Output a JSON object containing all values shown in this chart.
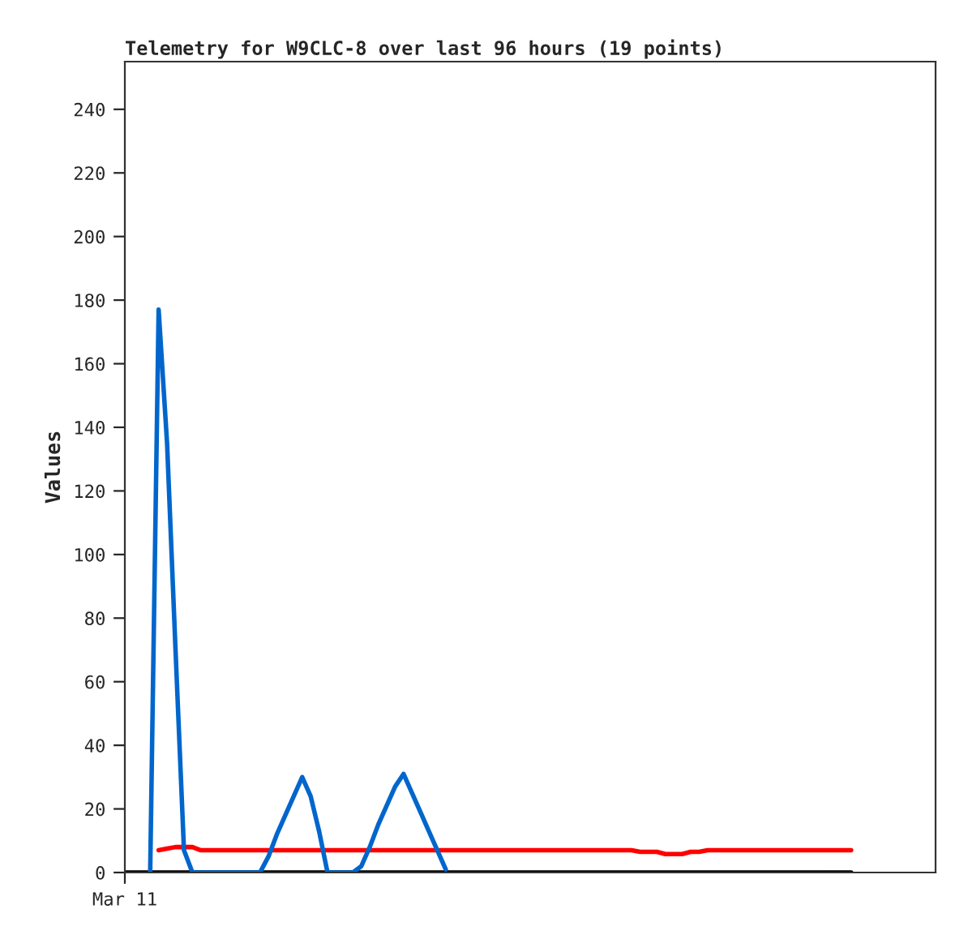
{
  "chart_data": {
    "type": "line",
    "title": "Telemetry for W9CLC-8 over last 96 hours (19 points)",
    "ylabel": "Values",
    "categories": [
      "Mar 11",
      null,
      null,
      null,
      null,
      null,
      null,
      null,
      null,
      null,
      null,
      null,
      null,
      null,
      null,
      null,
      null,
      null,
      null,
      null,
      null,
      null,
      null,
      null,
      null,
      null,
      null,
      null,
      null,
      null,
      null,
      null,
      null,
      null,
      null,
      null,
      null,
      null,
      null,
      null,
      null,
      null,
      null,
      null,
      null,
      null,
      null,
      null,
      null,
      null,
      null,
      null,
      null,
      null,
      null,
      null,
      null,
      null,
      null,
      null,
      null,
      null,
      null,
      null,
      null,
      null,
      null,
      null,
      null,
      null,
      null,
      null,
      null,
      null,
      null,
      null,
      null,
      null,
      null,
      null,
      null,
      null,
      null,
      null,
      null,
      null,
      null,
      null,
      null,
      null,
      null,
      null,
      null,
      null,
      null,
      null,
      null
    ],
    "ylim": [
      0,
      255
    ],
    "yticks": [
      0,
      20,
      40,
      60,
      80,
      100,
      120,
      140,
      160,
      180,
      200,
      220,
      240
    ],
    "grid": false,
    "marker": "none",
    "line_style": "solid",
    "series": [
      {
        "color": "#000000",
        "values": [
          0,
          0,
          0,
          0,
          0,
          0,
          0,
          0,
          0,
          0,
          0,
          0,
          0,
          0,
          0,
          0,
          0,
          0,
          0,
          0,
          0,
          0,
          0,
          0,
          0,
          0,
          0,
          0,
          0,
          0,
          0,
          0,
          0,
          0,
          0,
          0,
          0,
          0,
          0,
          0,
          0,
          0,
          0,
          0,
          0,
          0,
          0,
          0,
          0,
          0,
          0,
          0,
          0,
          0,
          0,
          0,
          0,
          0,
          0,
          0,
          0,
          0,
          0,
          0,
          0,
          0,
          0,
          0,
          0,
          0,
          0,
          0,
          0,
          0,
          0,
          0,
          0,
          0,
          0,
          0,
          0,
          0,
          0,
          0,
          0,
          0,
          0,
          null,
          null,
          null,
          null,
          null,
          null,
          null,
          null,
          null,
          null
        ]
      },
      {
        "color": "#ff0000",
        "values": [
          null,
          null,
          null,
          null,
          7,
          7.5,
          8,
          8,
          8,
          7,
          7,
          7,
          7,
          7,
          7,
          7,
          7,
          7,
          7,
          7,
          7,
          7,
          7,
          7,
          7,
          7,
          7,
          7,
          7,
          7,
          7,
          7,
          7,
          7,
          7,
          7,
          7,
          7,
          7,
          7,
          7,
          7,
          7,
          7,
          7,
          7,
          7,
          7,
          7,
          7,
          7,
          7,
          7,
          7,
          7,
          7,
          7,
          7,
          7,
          7,
          7,
          6.5,
          6.5,
          6.5,
          5.8,
          5.8,
          5.8,
          6.5,
          6.5,
          7,
          7,
          7,
          7,
          7,
          7,
          7,
          7,
          7,
          7,
          7,
          7,
          7,
          7,
          7,
          7,
          7,
          7,
          null,
          null,
          null,
          null,
          null,
          null,
          null,
          null,
          null,
          null
        ]
      },
      {
        "color": "#0066cc",
        "values": [
          null,
          null,
          null,
          0,
          177,
          135,
          70,
          7,
          0,
          0,
          0,
          0,
          0,
          0,
          0,
          0,
          0,
          5,
          12,
          18,
          24,
          30,
          24,
          13,
          0,
          0,
          0,
          0,
          2,
          8,
          15,
          21,
          27,
          31,
          25,
          19,
          13,
          7,
          1,
          null,
          null,
          null,
          null,
          null,
          null,
          null,
          null,
          null,
          null,
          null,
          null,
          null,
          null,
          null,
          null,
          null,
          null,
          null,
          null,
          null,
          null,
          null,
          null,
          null,
          null,
          null,
          null,
          null,
          null,
          null,
          null,
          null,
          null,
          null,
          null,
          null,
          null,
          null,
          null,
          null,
          null,
          null,
          null,
          null,
          null,
          null,
          null,
          null,
          null,
          null,
          null,
          null,
          null,
          null,
          null,
          null,
          null
        ]
      }
    ]
  }
}
